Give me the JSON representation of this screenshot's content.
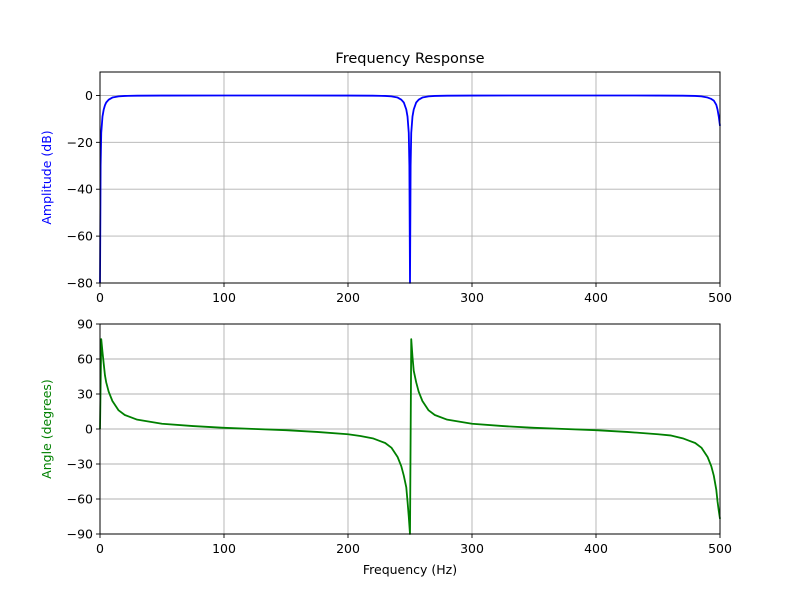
{
  "chart_data": [
    {
      "type": "line",
      "title": "Frequency Response",
      "xlabel": "",
      "ylabel": "Amplitude (dB)",
      "ylabel_color": "#0000ff",
      "line_color": "#0000ff",
      "xlim": [
        0,
        500
      ],
      "ylim": [
        -80,
        10
      ],
      "xticks": [
        0,
        100,
        200,
        300,
        400,
        500
      ],
      "xtick_labels": [
        "0",
        "100",
        "200",
        "300",
        "400",
        "500"
      ],
      "yticks": [
        -80,
        -60,
        -40,
        -20,
        0
      ],
      "ytick_labels": [
        "−80",
        "−60",
        "−40",
        "−20",
        "0"
      ],
      "grid": true,
      "notch_frequency": 250,
      "series": [
        {
          "x": [
            0,
            0.5,
            1,
            2,
            3,
            4,
            5,
            7,
            10,
            15,
            20,
            30,
            50,
            100,
            150,
            200,
            220,
            230,
            235,
            240,
            243,
            245,
            247,
            248,
            249,
            249.5,
            250,
            250.5,
            251,
            252,
            253,
            255,
            257,
            260,
            265,
            270,
            280,
            300,
            350,
            400,
            450,
            470,
            480,
            485,
            490,
            493,
            495,
            497,
            498,
            499,
            500
          ],
          "y": [
            -80,
            -30,
            -16,
            -9,
            -6,
            -4.2,
            -3,
            -1.8,
            -0.9,
            -0.4,
            -0.22,
            -0.1,
            -0.04,
            -0.01,
            -0.01,
            -0.04,
            -0.1,
            -0.22,
            -0.4,
            -0.9,
            -1.8,
            -3,
            -6,
            -9,
            -16,
            -30,
            -80,
            -30,
            -16,
            -9,
            -6,
            -3,
            -1.8,
            -0.9,
            -0.4,
            -0.22,
            -0.1,
            -0.04,
            -0.01,
            -0.01,
            -0.04,
            -0.1,
            -0.22,
            -0.4,
            -0.9,
            -1.5,
            -2.2,
            -4,
            -6,
            -9,
            -13
          ]
        }
      ]
    },
    {
      "type": "line",
      "title": "",
      "xlabel": "Frequency (Hz)",
      "ylabel": "Angle (degrees)",
      "ylabel_color": "#008000",
      "line_color": "#008000",
      "xlim": [
        0,
        500
      ],
      "ylim": [
        -90,
        90
      ],
      "xticks": [
        0,
        100,
        200,
        300,
        400,
        500
      ],
      "xtick_labels": [
        "0",
        "100",
        "200",
        "300",
        "400",
        "500"
      ],
      "yticks": [
        -90,
        -60,
        -30,
        0,
        30,
        60,
        90
      ],
      "ytick_labels": [
        "−90",
        "−60",
        "−30",
        "0",
        "30",
        "60",
        "90"
      ],
      "grid": true,
      "series": [
        {
          "x": [
            0,
            1,
            2,
            3,
            4,
            5,
            7,
            10,
            15,
            20,
            30,
            50,
            75,
            100,
            125,
            150,
            175,
            200,
            210,
            220,
            230,
            235,
            240,
            243,
            245,
            247,
            248,
            249,
            250,
            251,
            252,
            253,
            255,
            257,
            260,
            265,
            270,
            280,
            300,
            325,
            350,
            375,
            400,
            425,
            450,
            460,
            470,
            475,
            480,
            485,
            490,
            493,
            495,
            497,
            498,
            499,
            500
          ],
          "y": [
            0,
            77,
            66,
            56,
            46,
            40,
            32,
            24,
            16,
            12,
            8,
            4.5,
            2.5,
            1,
            0,
            -1,
            -2.5,
            -4.5,
            -6,
            -8,
            -12,
            -16,
            -24,
            -32,
            -40,
            -50,
            -62,
            -75,
            -90,
            77,
            62,
            50,
            40,
            32,
            24,
            16,
            12,
            8,
            4.5,
            2.5,
            1,
            0,
            -1,
            -2.5,
            -4.5,
            -5.5,
            -8,
            -10,
            -12,
            -16,
            -24,
            -32,
            -40,
            -52,
            -62,
            -70,
            -77
          ]
        }
      ]
    }
  ]
}
